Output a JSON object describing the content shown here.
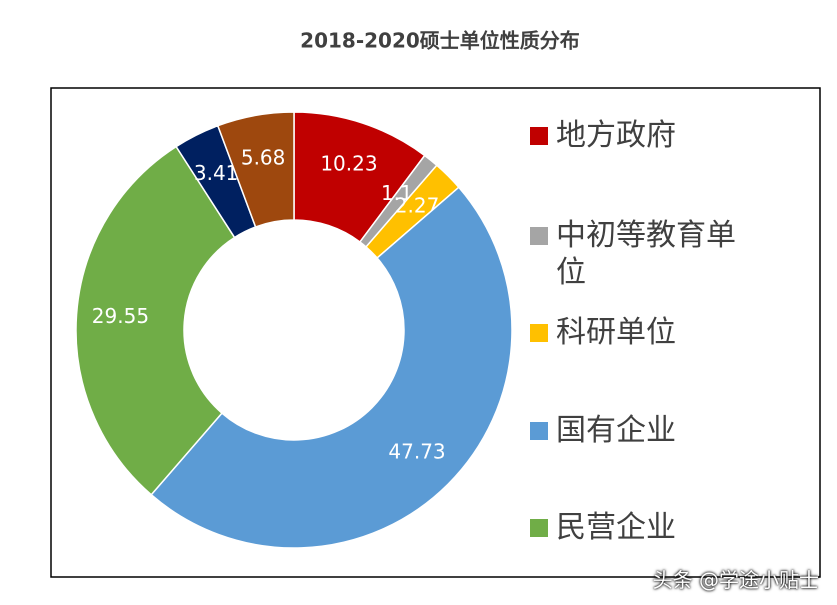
{
  "chart_data": {
    "type": "donut",
    "title": "2018-2020硕士单位性质分布",
    "categories": [
      "地方政府",
      "中初等教育单位",
      "科研单位",
      "国有企业",
      "民营企业",
      null,
      null
    ],
    "values": [
      10.23,
      1.14,
      2.27,
      47.73,
      29.55,
      3.41,
      5.68
    ],
    "colors": [
      "#c00000",
      "#a5a5a5",
      "#ffc000",
      "#5b9bd5",
      "#70ad47",
      "#002060",
      "#9e480e"
    ],
    "legend": "right"
  },
  "watermark": "头条 @学途小贴士"
}
